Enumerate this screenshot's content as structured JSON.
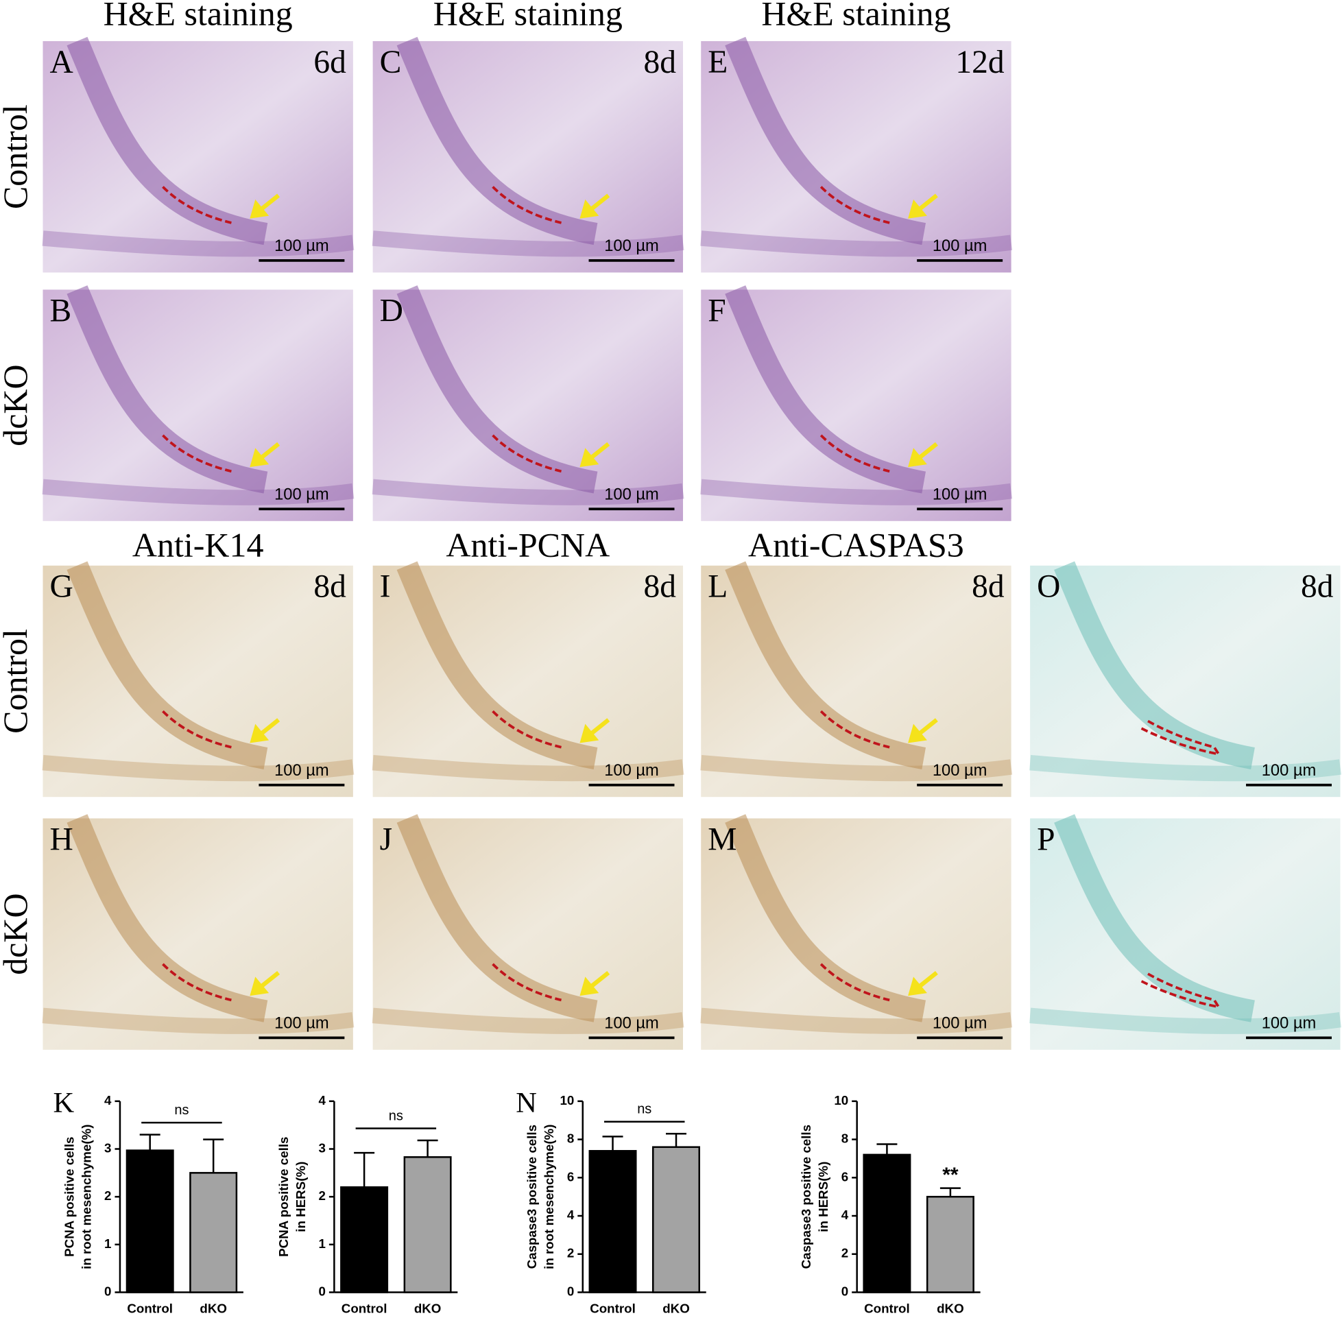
{
  "figure": {
    "he_headers": [
      "H&E staining",
      "H&E staining",
      "H&E staining"
    ],
    "ihc_headers": [
      "Anti-K14",
      "Anti-PCNA",
      "Anti-CASPAS3"
    ],
    "row_labels": [
      "Control",
      "dcKO",
      "Control",
      "dcKO"
    ],
    "panels": [
      {
        "letter": "A",
        "time": "6d",
        "scale_bar": "100 µm"
      },
      {
        "letter": "C",
        "time": "8d",
        "scale_bar": "100 µm"
      },
      {
        "letter": "E",
        "time": "12d",
        "scale_bar": "100 µm"
      },
      {
        "letter": "B",
        "scale_bar": "100 µm"
      },
      {
        "letter": "D",
        "scale_bar": "100 µm"
      },
      {
        "letter": "F",
        "scale_bar": "100 µm"
      },
      {
        "letter": "G",
        "time": "8d",
        "scale_bar": "100 µm"
      },
      {
        "letter": "I",
        "time": "8d",
        "scale_bar": "100 µm"
      },
      {
        "letter": "L",
        "time": "8d",
        "scale_bar": "100 µm"
      },
      {
        "letter": "O",
        "time": "8d",
        "scale_bar": "100 µm"
      },
      {
        "letter": "H",
        "scale_bar": "100 µm"
      },
      {
        "letter": "J",
        "scale_bar": "100 µm"
      },
      {
        "letter": "M",
        "scale_bar": "100 µm"
      },
      {
        "letter": "P",
        "scale_bar": "100 µm"
      }
    ]
  },
  "chart_data": [
    {
      "type": "bar",
      "panel_letter": "K",
      "ylabel": [
        "PCNA positive cells",
        "in root  mesenchyme(%)"
      ],
      "categories": [
        "Control",
        "dKO"
      ],
      "values": [
        2.97,
        2.5
      ],
      "errors": [
        0.33,
        0.7
      ],
      "colors": [
        "#000000",
        "#a3a3a3"
      ],
      "ylim": [
        0,
        4
      ],
      "yticks": [
        0,
        1,
        2,
        3,
        4
      ],
      "annotations": [
        {
          "text": "ns"
        }
      ]
    },
    {
      "type": "bar",
      "ylabel": [
        "PCNA positive cells",
        "in HERS(%)"
      ],
      "categories": [
        "Control",
        "dKO"
      ],
      "values": [
        2.2,
        2.83
      ],
      "errors": [
        0.72,
        0.35
      ],
      "colors": [
        "#000000",
        "#a3a3a3"
      ],
      "ylim": [
        0,
        4
      ],
      "yticks": [
        0,
        1,
        2,
        3,
        4
      ],
      "annotations": [
        {
          "text": "ns"
        }
      ]
    },
    {
      "type": "bar",
      "panel_letter": "N",
      "ylabel": [
        "Caspase3 positive cells",
        "in root mesenchyme(%)"
      ],
      "categories": [
        "Control",
        "dKO"
      ],
      "values": [
        7.4,
        7.6
      ],
      "errors": [
        0.75,
        0.7
      ],
      "colors": [
        "#000000",
        "#a3a3a3"
      ],
      "ylim": [
        0,
        10
      ],
      "yticks": [
        0,
        2,
        4,
        6,
        8,
        10
      ],
      "annotations": [
        {
          "text": "ns"
        }
      ]
    },
    {
      "type": "bar",
      "ylabel": [
        "Caspase3 positive cells",
        "in HERS(%)"
      ],
      "categories": [
        "Control",
        "dKO"
      ],
      "values": [
        7.2,
        5.0
      ],
      "errors": [
        0.55,
        0.45
      ],
      "colors": [
        "#000000",
        "#a3a3a3"
      ],
      "ylim": [
        0,
        10
      ],
      "yticks": [
        0,
        2,
        4,
        6,
        8,
        10
      ],
      "annotations": [
        {
          "text": "**",
          "category": "dKO"
        }
      ]
    }
  ]
}
